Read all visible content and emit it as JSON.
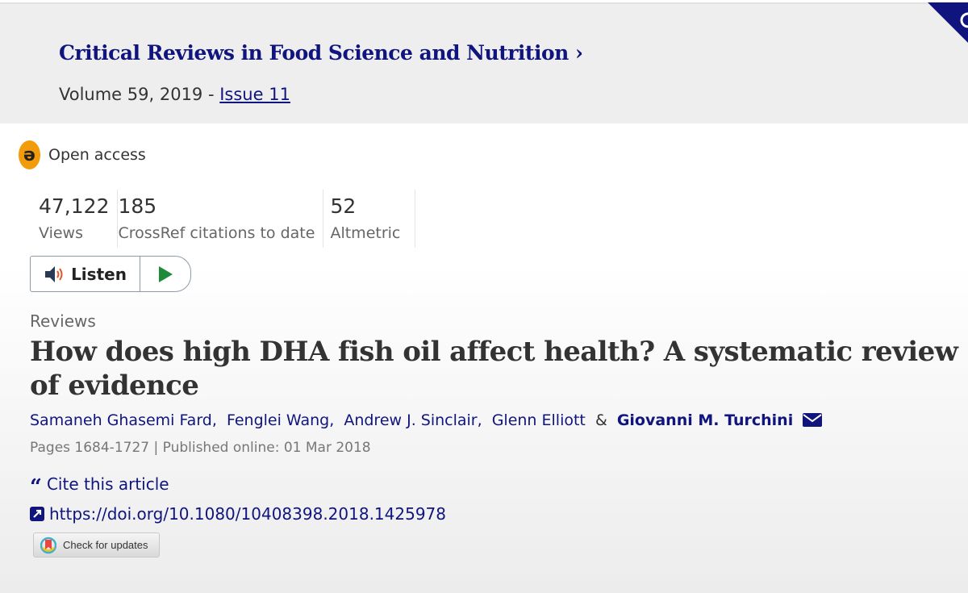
{
  "journal": {
    "title": "Critical Reviews in Food Science and Nutrition",
    "chevron": "›",
    "volume": "Volume 59, 2019 - ",
    "issue": "Issue 11"
  },
  "access": {
    "label": "Open access",
    "icon": "open-access-icon",
    "color": "#f29b0b"
  },
  "metrics": [
    {
      "value": "47,122",
      "label": "Views"
    },
    {
      "value": "185",
      "label": "CrossRef citations to date"
    },
    {
      "value": "52",
      "label": "Altmetric"
    }
  ],
  "listen": {
    "label": "Listen"
  },
  "article": {
    "category": "Reviews",
    "title": "How does high DHA fish oil affect health? A systematic review of evidence",
    "authors": [
      "Samaneh Ghasemi Fard,",
      "Fenglei Wang,",
      "Andrew J. Sinclair,",
      "Glenn Elliott"
    ],
    "amp": "&",
    "corresponding_author": "Giovanni M. Turchini",
    "pages": "Pages 1684-1727 | Published online: 01 Mar 2018",
    "cite": "Cite this article",
    "doi": "https://doi.org/10.1080/10408398.2018.1425978",
    "check_updates": "Check for updates"
  },
  "colors": {
    "link": "#10147e",
    "header_bg": "#eeeeee"
  }
}
